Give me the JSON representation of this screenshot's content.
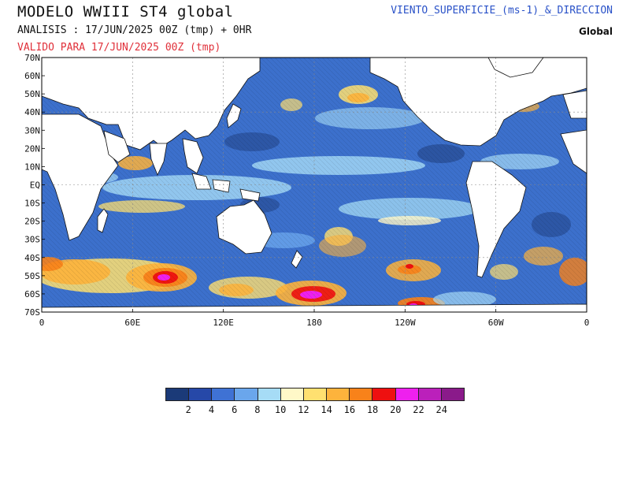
{
  "header": {
    "title": "MODELO WWIII ST4 global",
    "analysis": "ANALISIS : 17/JUN/2025 00Z  (tmp) + 0HR",
    "valid": "VALIDO PARA  17/JUN/2025 00Z  (tmp)",
    "variable": "VIENTO_SUPERFICIE_(ms-1)_&_DIRECCION",
    "region": "Global"
  },
  "map": {
    "lat_labels": [
      "70N",
      "60N",
      "50N",
      "40N",
      "30N",
      "20N",
      "10N",
      "EQ",
      "10S",
      "20S",
      "30S",
      "40S",
      "50S",
      "60S",
      "70S"
    ],
    "lon_labels": [
      "0",
      "60E",
      "120E",
      "180",
      "120W",
      "60W",
      "0"
    ]
  },
  "colorbar": {
    "labels": [
      "2",
      "4",
      "6",
      "8",
      "10",
      "12",
      "14",
      "16",
      "18",
      "20",
      "22",
      "24"
    ],
    "colors": [
      "#1b3a78",
      "#2648a8",
      "#3f72d4",
      "#6aa6ec",
      "#a6dcf6",
      "#fff8c8",
      "#ffe070",
      "#fdb33c",
      "#f8821a",
      "#ee1010",
      "#ee20ee",
      "#bb20bb",
      "#8a1a8a"
    ]
  },
  "colors": {
    "ocean_low": "#2a56b8",
    "ocean_mid": "#4a86dc",
    "ocean_calm": "#a6dcf6",
    "land": "#ffffff",
    "valid_text": "#e0303a",
    "variable_text": "#2a52c8"
  }
}
